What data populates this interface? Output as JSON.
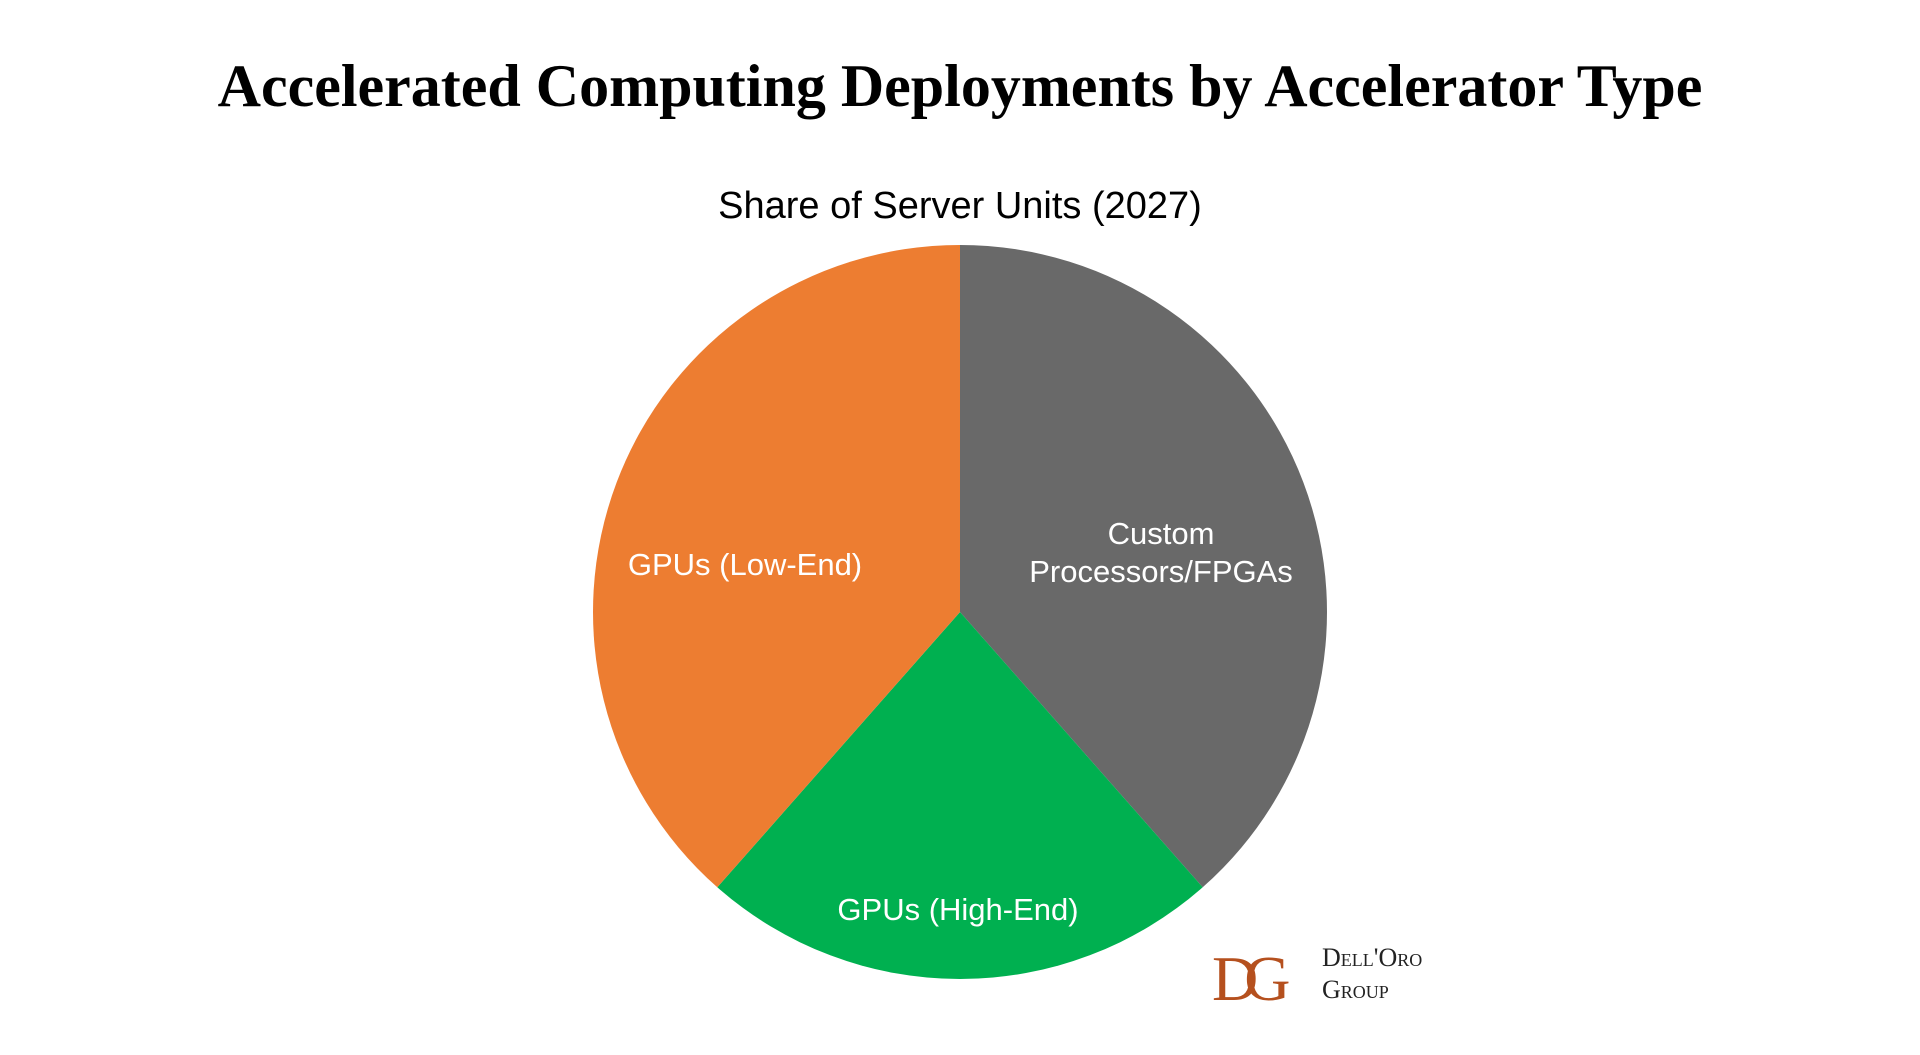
{
  "chart_data": {
    "type": "pie",
    "title": "Accelerated Computing Deployments by Accelerator Type",
    "subtitle": "Share of Server Units (2027)",
    "categories": [
      "Custom Processors/FPGAs",
      "GPUs (High-End)",
      "GPUs (Low-End)"
    ],
    "values": [
      38.5,
      23,
      38.5
    ],
    "colors": [
      "#696969",
      "#00b050",
      "#ed7d31"
    ]
  },
  "logo": {
    "mark": "DG",
    "line1": "Dell'Oro",
    "line2": "Group"
  }
}
